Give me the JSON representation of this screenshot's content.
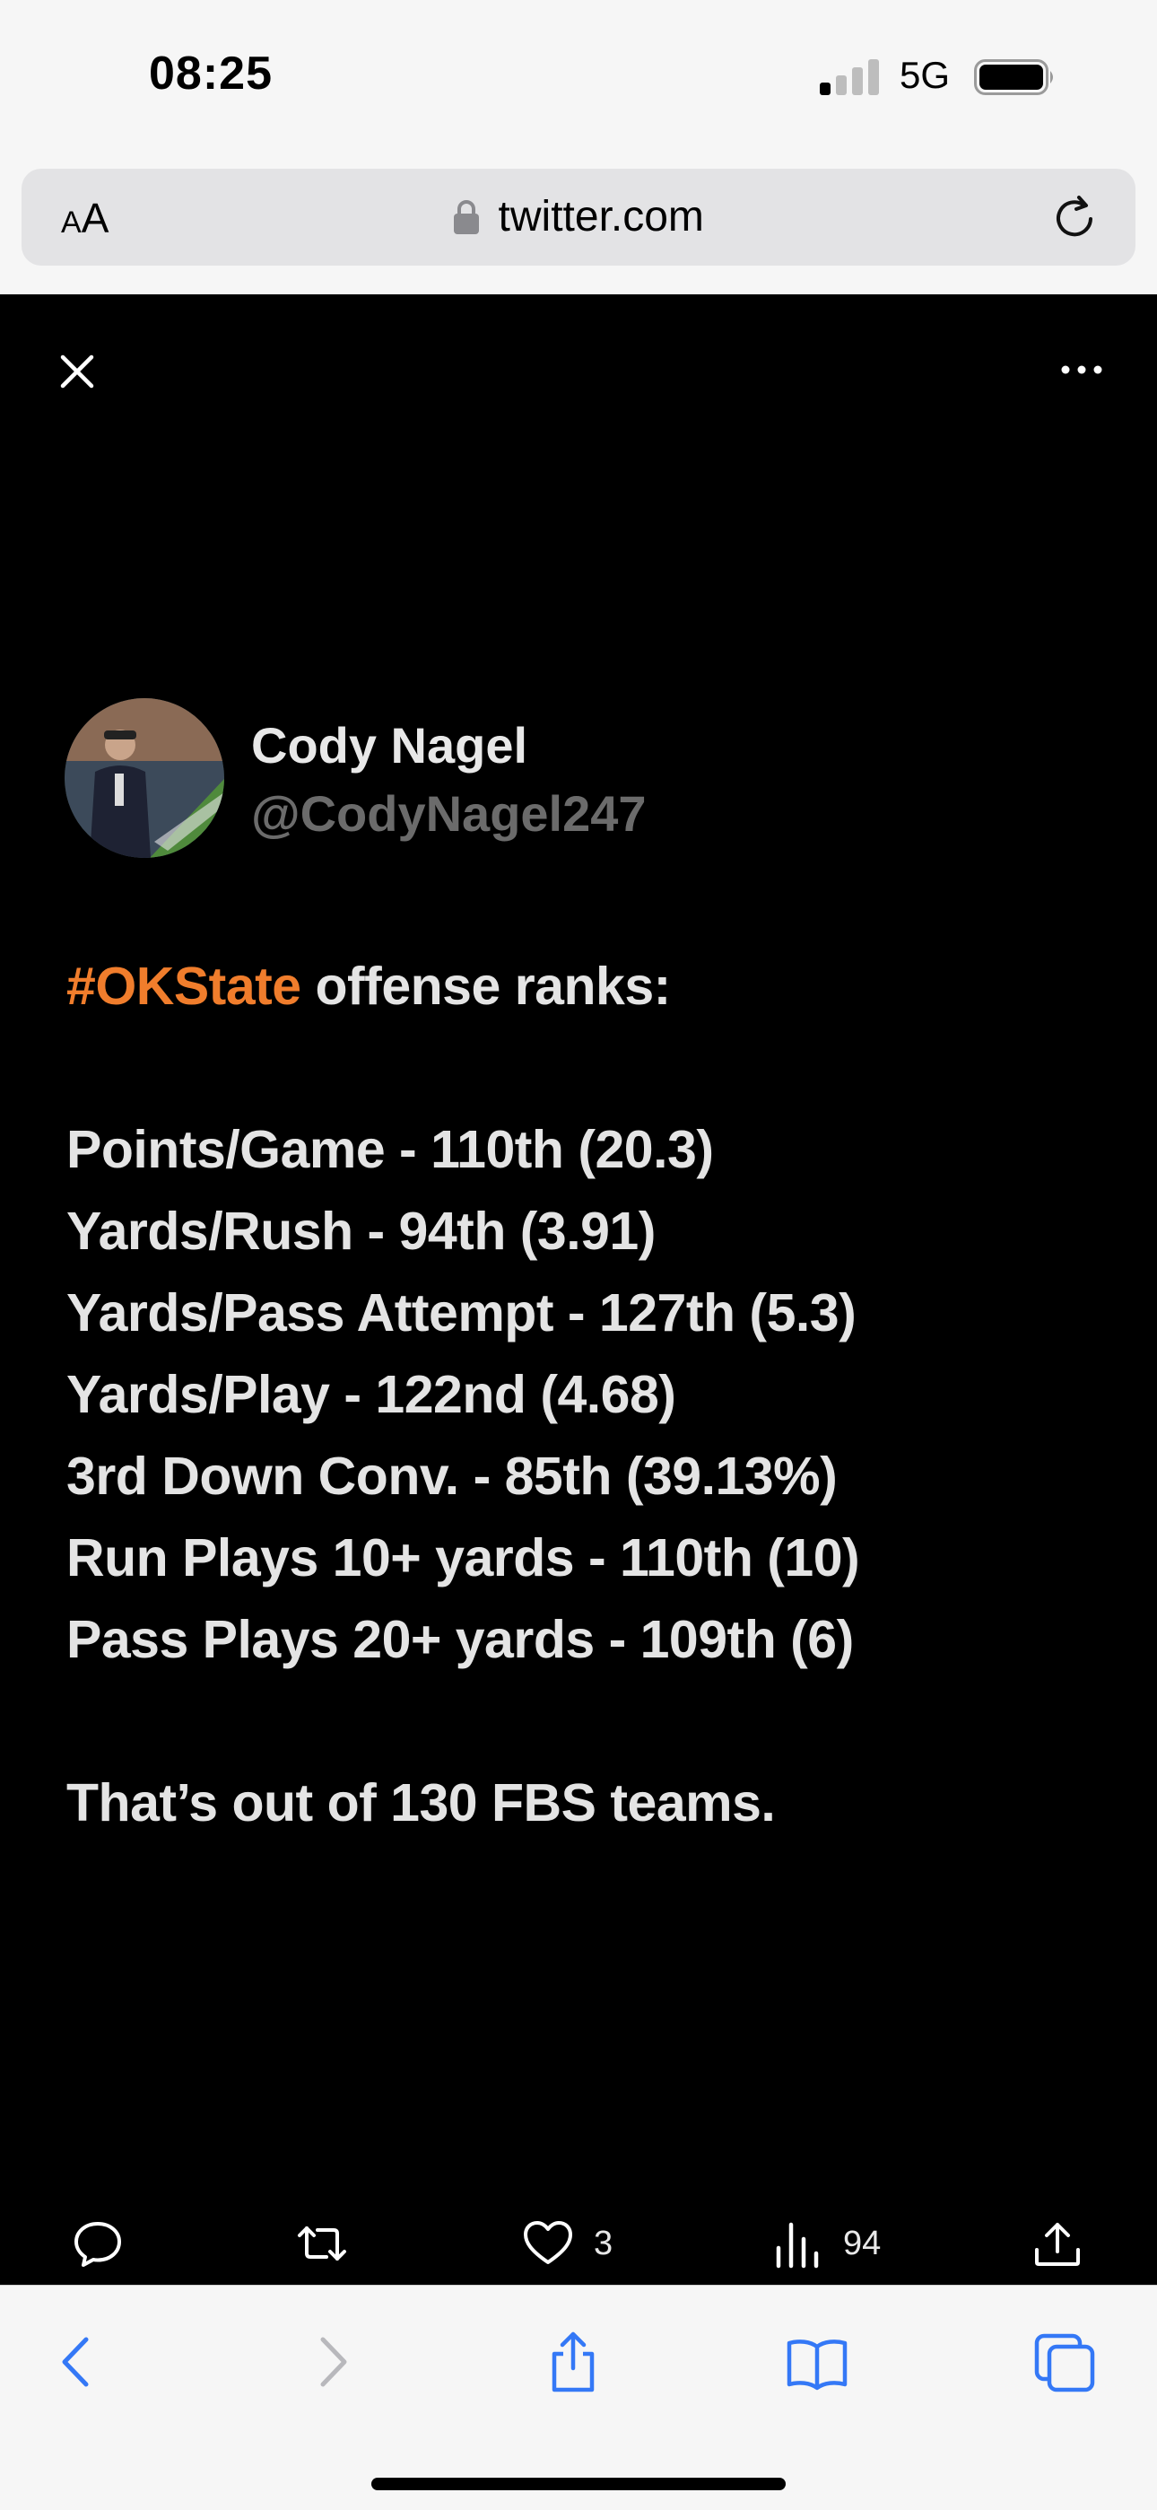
{
  "status_bar": {
    "time": "08:25",
    "network": "5G"
  },
  "address_bar": {
    "aa_small": "A",
    "aa_big": "A",
    "url": "twitter.com"
  },
  "tweet": {
    "author_name": "Cody Nagel",
    "author_handle": "@CodyNagel247",
    "hashtag": "#OKState",
    "headline_rest": " offense ranks:",
    "stats": [
      "Points/Game - 110th (20.3)",
      "Yards/Rush - 94th (3.91)",
      "Yards/Pass Attempt - 127th (5.3)",
      "Yards/Play - 122nd (4.68)",
      "3rd Down Conv. - 85th (39.13%)",
      "Run Plays 10+ yards - 110th (10)",
      "Pass Plays 20+ yards - 109th (6)"
    ],
    "footer": "That’s out of 130 FBS teams."
  },
  "actions": {
    "likes": "3",
    "views": "94"
  },
  "colors": {
    "hashtag": "#f07d2c",
    "ios_blue": "#3478f6"
  }
}
